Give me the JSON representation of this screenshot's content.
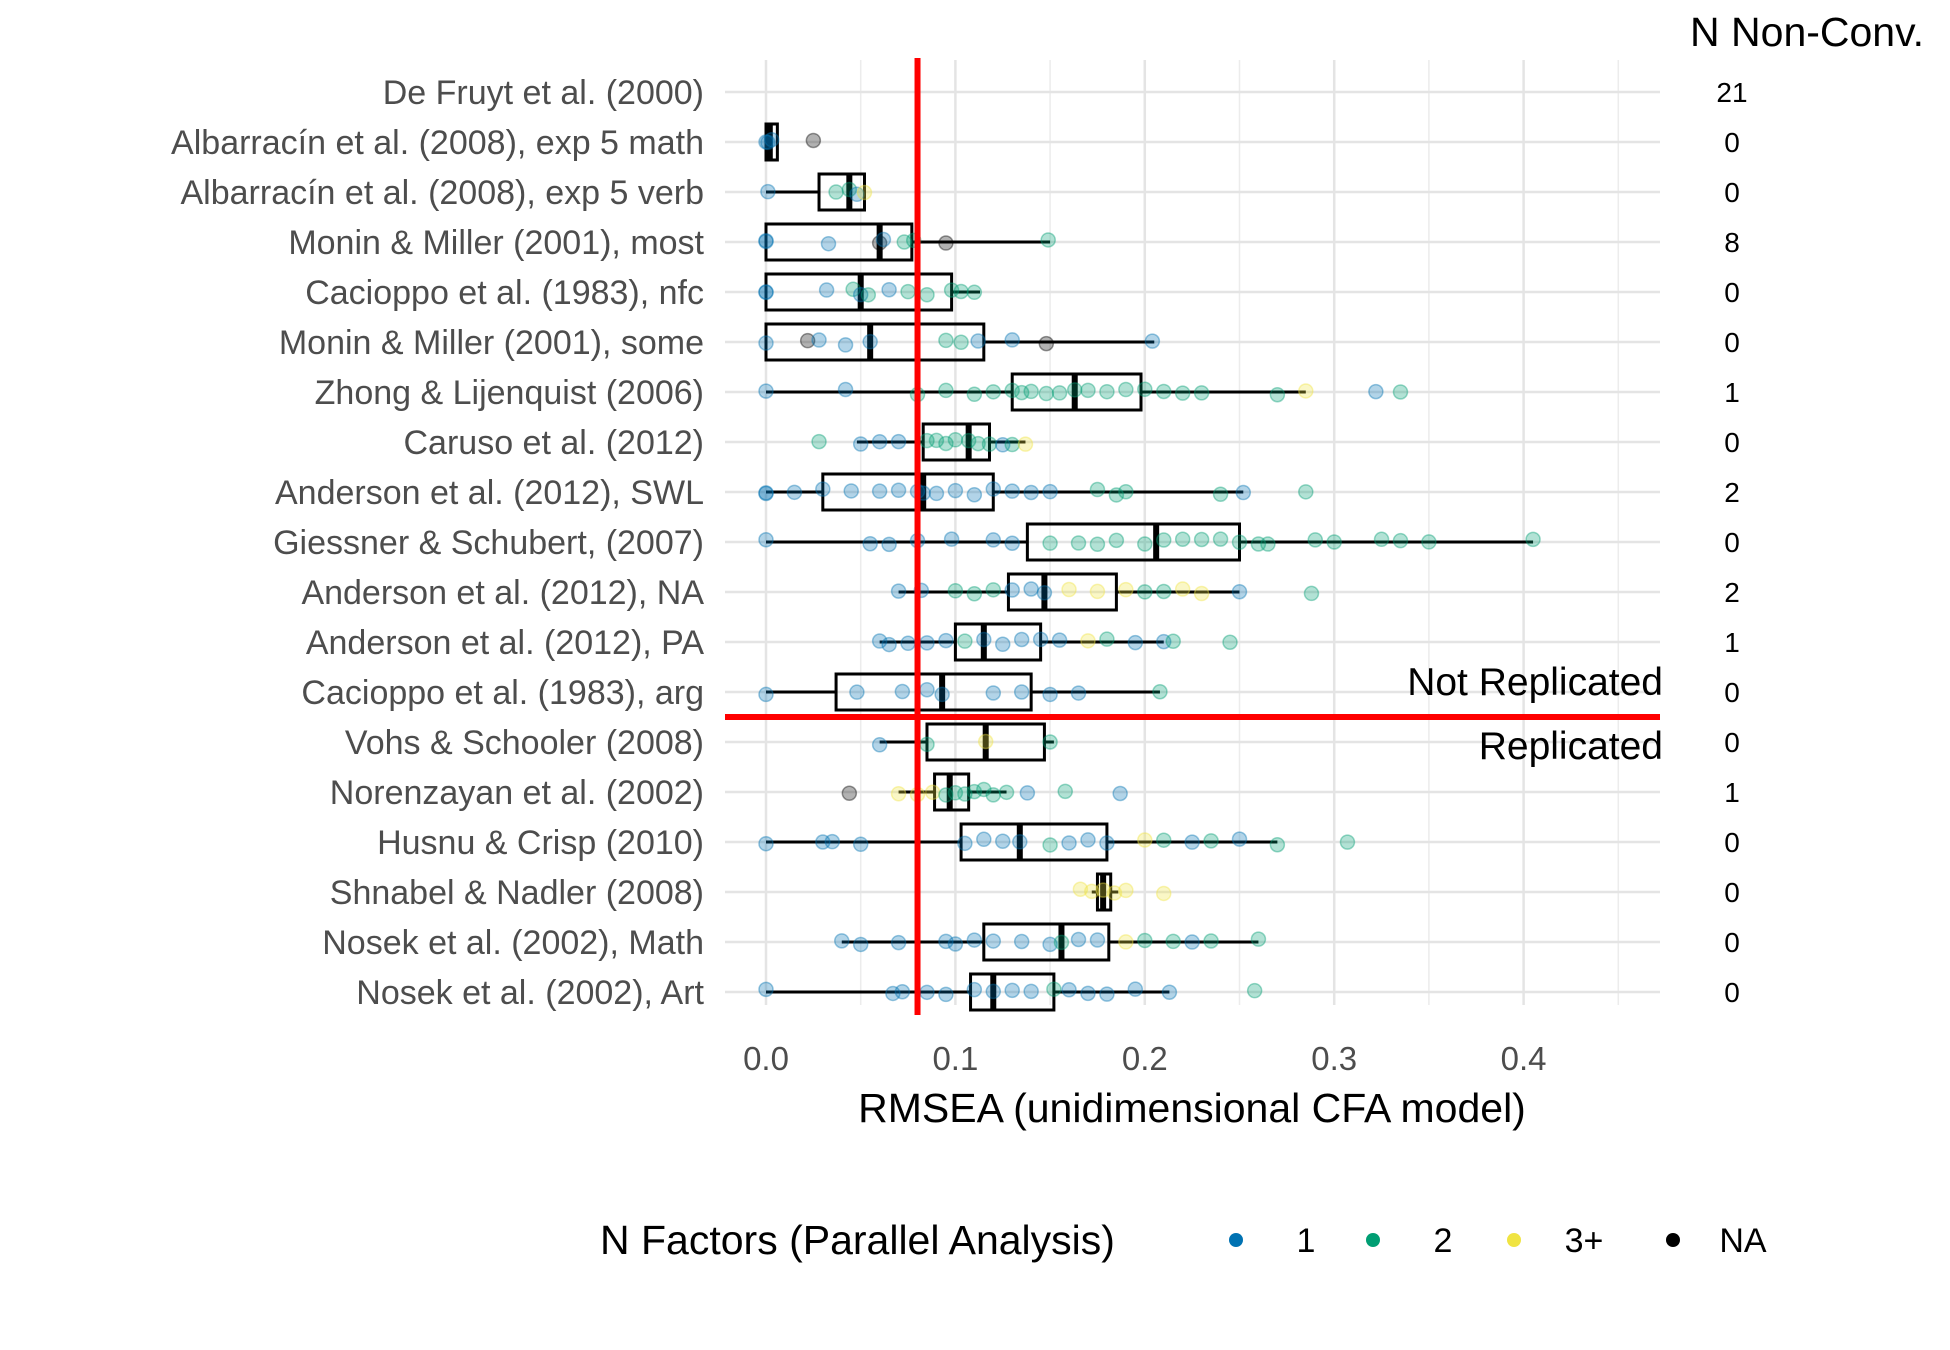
{
  "chart_data": {
    "type": "boxplot",
    "xlabel": "RMSEA (unidimensional CFA model)",
    "xlim": [
      -0.02,
      0.47
    ],
    "xticks": [
      0.0,
      0.1,
      0.2,
      0.3,
      0.4
    ],
    "xtick_labels": [
      "0.0",
      "0.1",
      "0.2",
      "0.3",
      "0.4"
    ],
    "reference_x": 0.08,
    "nonconv_header": "N Non-Conv.",
    "region_labels": {
      "above": "Not Replicated",
      "below": "Replicated"
    },
    "split_after_index": 12,
    "legend": {
      "title": "N Factors (Parallel Analysis)",
      "entries": [
        {
          "label": "1",
          "color": "#0072B2"
        },
        {
          "label": "2",
          "color": "#009E73"
        },
        {
          "label": "3+",
          "color": "#F0E442"
        },
        {
          "label": "NA",
          "color": "#000000"
        }
      ]
    },
    "studies": [
      {
        "label": "De Fruyt et al. (2000)",
        "nonconv": "21",
        "box": null,
        "points": []
      },
      {
        "label": "Albarracín et al. (2008), exp 5 math",
        "nonconv": "0",
        "box": {
          "min": 0.0,
          "q1": 0.0,
          "median": 0.002,
          "q3": 0.006,
          "max": 0.006
        },
        "points": [
          [
            0.0,
            1
          ],
          [
            0.001,
            1
          ],
          [
            0.003,
            1
          ],
          [
            0.025,
            4
          ]
        ]
      },
      {
        "label": "Albarracín et al. (2008), exp 5 verb",
        "nonconv": "0",
        "box": {
          "min": 0.0,
          "q1": 0.028,
          "median": 0.044,
          "q3": 0.052,
          "max": 0.052
        },
        "points": [
          [
            0.001,
            1
          ],
          [
            0.037,
            2
          ],
          [
            0.044,
            2
          ],
          [
            0.048,
            1
          ],
          [
            0.052,
            3
          ]
        ]
      },
      {
        "label": "Monin & Miller (2001), most",
        "nonconv": "8",
        "box": {
          "min": 0.0,
          "q1": 0.0,
          "median": 0.06,
          "q3": 0.077,
          "max": 0.15
        },
        "points": [
          [
            0.0,
            1
          ],
          [
            0.0,
            1
          ],
          [
            0.033,
            1
          ],
          [
            0.06,
            4
          ],
          [
            0.062,
            1
          ],
          [
            0.073,
            2
          ],
          [
            0.078,
            2
          ],
          [
            0.095,
            4
          ],
          [
            0.149,
            2
          ]
        ]
      },
      {
        "label": "Cacioppo et al. (1983), nfc",
        "nonconv": "0",
        "box": {
          "min": 0.0,
          "q1": 0.0,
          "median": 0.05,
          "q3": 0.098,
          "max": 0.113
        },
        "points": [
          [
            0.0,
            1
          ],
          [
            0.0,
            1
          ],
          [
            0.032,
            1
          ],
          [
            0.046,
            2
          ],
          [
            0.05,
            1
          ],
          [
            0.054,
            2
          ],
          [
            0.065,
            1
          ],
          [
            0.075,
            2
          ],
          [
            0.085,
            2
          ],
          [
            0.098,
            2
          ],
          [
            0.103,
            2
          ],
          [
            0.11,
            2
          ]
        ]
      },
      {
        "label": "Monin & Miller (2001), some",
        "nonconv": "0",
        "box": {
          "min": 0.0,
          "q1": 0.0,
          "median": 0.055,
          "q3": 0.115,
          "max": 0.205
        },
        "points": [
          [
            0.0,
            1
          ],
          [
            0.022,
            4
          ],
          [
            0.028,
            1
          ],
          [
            0.042,
            1
          ],
          [
            0.055,
            1
          ],
          [
            0.095,
            2
          ],
          [
            0.103,
            2
          ],
          [
            0.112,
            1
          ],
          [
            0.13,
            1
          ],
          [
            0.148,
            4
          ],
          [
            0.204,
            1
          ]
        ]
      },
      {
        "label": "Zhong & Lijenquist (2006)",
        "nonconv": "1",
        "box": {
          "min": 0.0,
          "q1": 0.13,
          "median": 0.163,
          "q3": 0.198,
          "max": 0.285
        },
        "points": [
          [
            0.0,
            1
          ],
          [
            0.042,
            1
          ],
          [
            0.08,
            2
          ],
          [
            0.095,
            2
          ],
          [
            0.11,
            2
          ],
          [
            0.12,
            2
          ],
          [
            0.13,
            2
          ],
          [
            0.135,
            2
          ],
          [
            0.14,
            2
          ],
          [
            0.148,
            2
          ],
          [
            0.155,
            2
          ],
          [
            0.163,
            2
          ],
          [
            0.17,
            2
          ],
          [
            0.18,
            2
          ],
          [
            0.19,
            2
          ],
          [
            0.2,
            2
          ],
          [
            0.21,
            2
          ],
          [
            0.22,
            2
          ],
          [
            0.23,
            2
          ],
          [
            0.27,
            2
          ],
          [
            0.285,
            3
          ],
          [
            0.322,
            1
          ],
          [
            0.335,
            2
          ]
        ]
      },
      {
        "label": "Caruso et al. (2012)",
        "nonconv": "0",
        "box": {
          "min": 0.048,
          "q1": 0.083,
          "median": 0.107,
          "q3": 0.118,
          "max": 0.137
        },
        "points": [
          [
            0.028,
            2
          ],
          [
            0.05,
            1
          ],
          [
            0.06,
            1
          ],
          [
            0.07,
            1
          ],
          [
            0.085,
            2
          ],
          [
            0.09,
            2
          ],
          [
            0.095,
            2
          ],
          [
            0.1,
            2
          ],
          [
            0.107,
            2
          ],
          [
            0.112,
            2
          ],
          [
            0.118,
            2
          ],
          [
            0.125,
            1
          ],
          [
            0.13,
            2
          ],
          [
            0.137,
            3
          ]
        ]
      },
      {
        "label": "Anderson et al. (2012), SWL",
        "nonconv": "2",
        "box": {
          "min": 0.0,
          "q1": 0.03,
          "median": 0.083,
          "q3": 0.12,
          "max": 0.252
        },
        "points": [
          [
            0.0,
            1
          ],
          [
            0.0,
            1
          ],
          [
            0.015,
            1
          ],
          [
            0.03,
            1
          ],
          [
            0.045,
            1
          ],
          [
            0.06,
            1
          ],
          [
            0.07,
            1
          ],
          [
            0.08,
            1
          ],
          [
            0.083,
            1
          ],
          [
            0.09,
            1
          ],
          [
            0.1,
            1
          ],
          [
            0.11,
            1
          ],
          [
            0.12,
            1
          ],
          [
            0.13,
            1
          ],
          [
            0.14,
            1
          ],
          [
            0.15,
            1
          ],
          [
            0.175,
            2
          ],
          [
            0.185,
            2
          ],
          [
            0.19,
            2
          ],
          [
            0.24,
            2
          ],
          [
            0.252,
            1
          ],
          [
            0.285,
            2
          ]
        ]
      },
      {
        "label": "Giessner & Schubert, (2007)",
        "nonconv": "0",
        "box": {
          "min": 0.0,
          "q1": 0.138,
          "median": 0.206,
          "q3": 0.25,
          "max": 0.405
        },
        "points": [
          [
            0.0,
            1
          ],
          [
            0.055,
            1
          ],
          [
            0.065,
            1
          ],
          [
            0.08,
            1
          ],
          [
            0.098,
            1
          ],
          [
            0.12,
            1
          ],
          [
            0.13,
            1
          ],
          [
            0.15,
            2
          ],
          [
            0.165,
            2
          ],
          [
            0.175,
            2
          ],
          [
            0.185,
            2
          ],
          [
            0.2,
            2
          ],
          [
            0.21,
            2
          ],
          [
            0.22,
            2
          ],
          [
            0.23,
            2
          ],
          [
            0.24,
            2
          ],
          [
            0.25,
            2
          ],
          [
            0.26,
            2
          ],
          [
            0.265,
            2
          ],
          [
            0.29,
            2
          ],
          [
            0.3,
            2
          ],
          [
            0.325,
            2
          ],
          [
            0.335,
            2
          ],
          [
            0.35,
            2
          ],
          [
            0.405,
            2
          ]
        ]
      },
      {
        "label": "Anderson et al. (2012), NA",
        "nonconv": "2",
        "box": {
          "min": 0.07,
          "q1": 0.128,
          "median": 0.147,
          "q3": 0.185,
          "max": 0.25
        },
        "points": [
          [
            0.07,
            1
          ],
          [
            0.082,
            1
          ],
          [
            0.1,
            2
          ],
          [
            0.11,
            2
          ],
          [
            0.12,
            2
          ],
          [
            0.13,
            1
          ],
          [
            0.14,
            1
          ],
          [
            0.147,
            1
          ],
          [
            0.16,
            3
          ],
          [
            0.175,
            3
          ],
          [
            0.19,
            3
          ],
          [
            0.2,
            2
          ],
          [
            0.21,
            2
          ],
          [
            0.22,
            3
          ],
          [
            0.23,
            3
          ],
          [
            0.25,
            1
          ],
          [
            0.288,
            2
          ]
        ]
      },
      {
        "label": "Anderson et al. (2012), PA",
        "nonconv": "1",
        "box": {
          "min": 0.06,
          "q1": 0.1,
          "median": 0.115,
          "q3": 0.145,
          "max": 0.21
        },
        "points": [
          [
            0.06,
            1
          ],
          [
            0.065,
            1
          ],
          [
            0.075,
            1
          ],
          [
            0.085,
            1
          ],
          [
            0.095,
            1
          ],
          [
            0.105,
            2
          ],
          [
            0.115,
            1
          ],
          [
            0.125,
            1
          ],
          [
            0.135,
            1
          ],
          [
            0.145,
            1
          ],
          [
            0.155,
            1
          ],
          [
            0.17,
            3
          ],
          [
            0.18,
            2
          ],
          [
            0.195,
            1
          ],
          [
            0.21,
            1
          ],
          [
            0.215,
            2
          ],
          [
            0.245,
            2
          ]
        ]
      },
      {
        "label": "Cacioppo et al. (1983), arg",
        "nonconv": "0",
        "box": {
          "min": 0.0,
          "q1": 0.037,
          "median": 0.093,
          "q3": 0.14,
          "max": 0.208
        },
        "points": [
          [
            0.0,
            1
          ],
          [
            0.048,
            1
          ],
          [
            0.072,
            1
          ],
          [
            0.085,
            1
          ],
          [
            0.093,
            1
          ],
          [
            0.12,
            1
          ],
          [
            0.135,
            1
          ],
          [
            0.15,
            1
          ],
          [
            0.165,
            1
          ],
          [
            0.208,
            2
          ]
        ]
      },
      {
        "label": "Vohs & Schooler (2008)",
        "nonconv": "0",
        "box": {
          "min": 0.06,
          "q1": 0.085,
          "median": 0.116,
          "q3": 0.147,
          "max": 0.152
        },
        "points": [
          [
            0.06,
            1
          ],
          [
            0.085,
            2
          ],
          [
            0.116,
            3
          ],
          [
            0.15,
            2
          ]
        ]
      },
      {
        "label": "Norenzayan et al. (2002)",
        "nonconv": "1",
        "box": {
          "min": 0.07,
          "q1": 0.089,
          "median": 0.097,
          "q3": 0.107,
          "max": 0.127
        },
        "points": [
          [
            0.044,
            4
          ],
          [
            0.07,
            3
          ],
          [
            0.08,
            3
          ],
          [
            0.088,
            3
          ],
          [
            0.095,
            2
          ],
          [
            0.1,
            2
          ],
          [
            0.105,
            2
          ],
          [
            0.11,
            2
          ],
          [
            0.115,
            2
          ],
          [
            0.12,
            2
          ],
          [
            0.127,
            2
          ],
          [
            0.138,
            1
          ],
          [
            0.158,
            2
          ],
          [
            0.187,
            1
          ]
        ]
      },
      {
        "label": "Husnu & Crisp (2010)",
        "nonconv": "0",
        "box": {
          "min": 0.0,
          "q1": 0.103,
          "median": 0.134,
          "q3": 0.18,
          "max": 0.27
        },
        "points": [
          [
            0.0,
            1
          ],
          [
            0.03,
            1
          ],
          [
            0.035,
            1
          ],
          [
            0.05,
            1
          ],
          [
            0.105,
            1
          ],
          [
            0.115,
            1
          ],
          [
            0.125,
            1
          ],
          [
            0.134,
            1
          ],
          [
            0.15,
            2
          ],
          [
            0.16,
            1
          ],
          [
            0.17,
            1
          ],
          [
            0.18,
            1
          ],
          [
            0.2,
            3
          ],
          [
            0.21,
            2
          ],
          [
            0.225,
            1
          ],
          [
            0.235,
            2
          ],
          [
            0.25,
            1
          ],
          [
            0.27,
            2
          ],
          [
            0.307,
            2
          ]
        ]
      },
      {
        "label": "Shnabel & Nadler (2008)",
        "nonconv": "0",
        "box": {
          "min": 0.172,
          "q1": 0.175,
          "median": 0.178,
          "q3": 0.182,
          "max": 0.186
        },
        "points": [
          [
            0.166,
            3
          ],
          [
            0.172,
            3
          ],
          [
            0.178,
            3
          ],
          [
            0.184,
            3
          ],
          [
            0.19,
            3
          ],
          [
            0.21,
            3
          ]
        ]
      },
      {
        "label": "Nosek et al. (2002), Math",
        "nonconv": "0",
        "box": {
          "min": 0.04,
          "q1": 0.115,
          "median": 0.156,
          "q3": 0.181,
          "max": 0.26
        },
        "points": [
          [
            0.04,
            1
          ],
          [
            0.05,
            1
          ],
          [
            0.07,
            1
          ],
          [
            0.095,
            1
          ],
          [
            0.1,
            1
          ],
          [
            0.11,
            1
          ],
          [
            0.12,
            1
          ],
          [
            0.135,
            1
          ],
          [
            0.15,
            1
          ],
          [
            0.156,
            2
          ],
          [
            0.165,
            1
          ],
          [
            0.175,
            1
          ],
          [
            0.19,
            3
          ],
          [
            0.2,
            2
          ],
          [
            0.215,
            2
          ],
          [
            0.225,
            1
          ],
          [
            0.235,
            2
          ],
          [
            0.26,
            2
          ]
        ]
      },
      {
        "label": "Nosek et al. (2002), Art",
        "nonconv": "0",
        "box": {
          "min": 0.0,
          "q1": 0.108,
          "median": 0.12,
          "q3": 0.152,
          "max": 0.213
        },
        "points": [
          [
            0.0,
            1
          ],
          [
            0.067,
            1
          ],
          [
            0.072,
            1
          ],
          [
            0.085,
            1
          ],
          [
            0.095,
            1
          ],
          [
            0.11,
            1
          ],
          [
            0.12,
            1
          ],
          [
            0.13,
            1
          ],
          [
            0.14,
            1
          ],
          [
            0.152,
            2
          ],
          [
            0.16,
            1
          ],
          [
            0.17,
            1
          ],
          [
            0.18,
            1
          ],
          [
            0.195,
            1
          ],
          [
            0.213,
            1
          ],
          [
            0.258,
            2
          ]
        ]
      }
    ]
  }
}
